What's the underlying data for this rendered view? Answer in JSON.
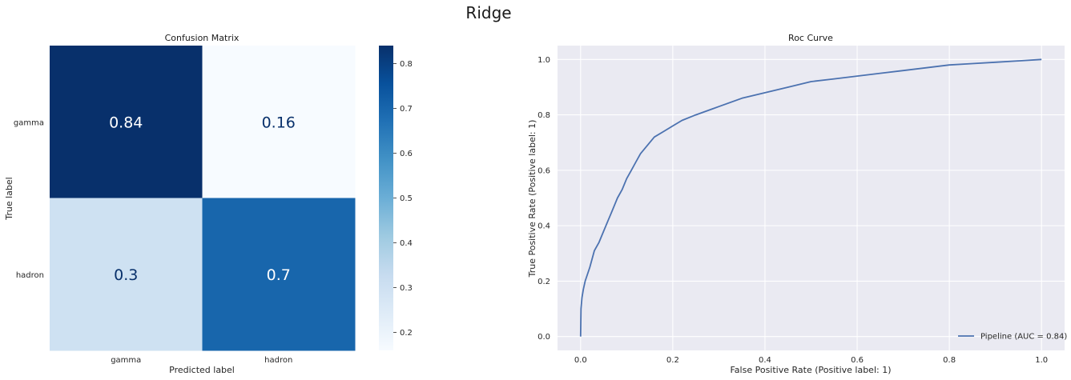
{
  "figure": {
    "title": "Ridge"
  },
  "chart_data": [
    {
      "type": "heatmap",
      "title": "Confusion Matrix",
      "xlabel": "Predicted label",
      "ylabel": "True label",
      "x_categories": [
        "gamma",
        "hadron"
      ],
      "y_categories": [
        "gamma",
        "hadron"
      ],
      "values": [
        [
          0.84,
          0.16
        ],
        [
          0.3,
          0.7
        ]
      ],
      "value_labels": [
        "0.84",
        "0.16",
        "0.3",
        "0.7"
      ],
      "colormap": "Blues",
      "colorbar": {
        "range": [
          0.16,
          0.84
        ],
        "ticks": [
          "0.2",
          "0.3",
          "0.4",
          "0.5",
          "0.6",
          "0.7",
          "0.8"
        ]
      }
    },
    {
      "type": "line",
      "title": "Roc Curve",
      "xlabel": "False Positive Rate (Positive label: 1)",
      "ylabel": "True Positive Rate (Positive label: 1)",
      "xlim": [
        -0.05,
        1.05
      ],
      "ylim": [
        -0.05,
        1.05
      ],
      "x_ticks": [
        "0.0",
        "0.2",
        "0.4",
        "0.6",
        "0.8",
        "1.0"
      ],
      "y_ticks": [
        "0.0",
        "0.2",
        "0.4",
        "0.6",
        "0.8",
        "1.0"
      ],
      "grid": true,
      "legend_position": "lower-right",
      "series": [
        {
          "name": "Pipeline (AUC = 0.84)",
          "color": "#4c72b0",
          "points": [
            [
              0,
              0
            ],
            [
              0.001,
              0.1
            ],
            [
              0.003,
              0.14
            ],
            [
              0.006,
              0.17
            ],
            [
              0.01,
              0.2
            ],
            [
              0.02,
              0.25
            ],
            [
              0.03,
              0.31
            ],
            [
              0.04,
              0.34
            ],
            [
              0.05,
              0.38
            ],
            [
              0.06,
              0.42
            ],
            [
              0.07,
              0.46
            ],
            [
              0.08,
              0.5
            ],
            [
              0.09,
              0.53
            ],
            [
              0.1,
              0.57
            ],
            [
              0.11,
              0.6
            ],
            [
              0.12,
              0.63
            ],
            [
              0.13,
              0.66
            ],
            [
              0.14,
              0.68
            ],
            [
              0.15,
              0.7
            ],
            [
              0.16,
              0.72
            ],
            [
              0.18,
              0.74
            ],
            [
              0.2,
              0.76
            ],
            [
              0.22,
              0.78
            ],
            [
              0.25,
              0.8
            ],
            [
              0.3,
              0.83
            ],
            [
              0.35,
              0.86
            ],
            [
              0.4,
              0.88
            ],
            [
              0.45,
              0.9
            ],
            [
              0.5,
              0.92
            ],
            [
              0.55,
              0.93
            ],
            [
              0.6,
              0.94
            ],
            [
              0.65,
              0.95
            ],
            [
              0.7,
              0.96
            ],
            [
              0.75,
              0.97
            ],
            [
              0.8,
              0.98
            ],
            [
              0.85,
              0.985
            ],
            [
              0.9,
              0.99
            ],
            [
              0.95,
              0.995
            ],
            [
              1.0,
              1.0
            ]
          ]
        }
      ]
    }
  ]
}
